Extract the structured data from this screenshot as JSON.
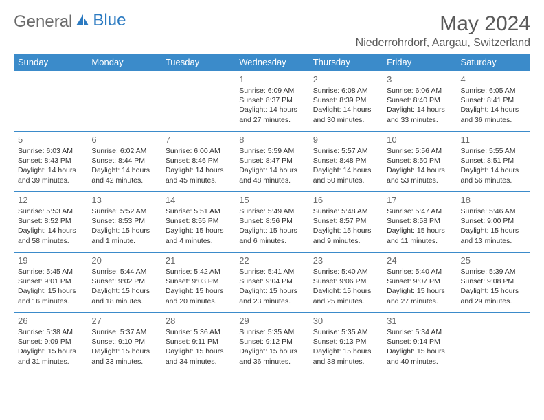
{
  "logo": {
    "text1": "General",
    "text2": "Blue"
  },
  "title": "May 2024",
  "location": "Niederrohrdorf, Aargau, Switzerland",
  "colors": {
    "header_bg": "#3b8bca",
    "header_fg": "#ffffff",
    "border": "#3b8bca",
    "text": "#333333",
    "muted": "#6a6a6a",
    "logo_blue": "#2b7ac1"
  },
  "days": [
    "Sunday",
    "Monday",
    "Tuesday",
    "Wednesday",
    "Thursday",
    "Friday",
    "Saturday"
  ],
  "weeks": [
    [
      null,
      null,
      null,
      {
        "n": "1",
        "sr": "6:09 AM",
        "ss": "8:37 PM",
        "d1": "14 hours",
        "d2": "and 27 minutes."
      },
      {
        "n": "2",
        "sr": "6:08 AM",
        "ss": "8:39 PM",
        "d1": "14 hours",
        "d2": "and 30 minutes."
      },
      {
        "n": "3",
        "sr": "6:06 AM",
        "ss": "8:40 PM",
        "d1": "14 hours",
        "d2": "and 33 minutes."
      },
      {
        "n": "4",
        "sr": "6:05 AM",
        "ss": "8:41 PM",
        "d1": "14 hours",
        "d2": "and 36 minutes."
      }
    ],
    [
      {
        "n": "5",
        "sr": "6:03 AM",
        "ss": "8:43 PM",
        "d1": "14 hours",
        "d2": "and 39 minutes."
      },
      {
        "n": "6",
        "sr": "6:02 AM",
        "ss": "8:44 PM",
        "d1": "14 hours",
        "d2": "and 42 minutes."
      },
      {
        "n": "7",
        "sr": "6:00 AM",
        "ss": "8:46 PM",
        "d1": "14 hours",
        "d2": "and 45 minutes."
      },
      {
        "n": "8",
        "sr": "5:59 AM",
        "ss": "8:47 PM",
        "d1": "14 hours",
        "d2": "and 48 minutes."
      },
      {
        "n": "9",
        "sr": "5:57 AM",
        "ss": "8:48 PM",
        "d1": "14 hours",
        "d2": "and 50 minutes."
      },
      {
        "n": "10",
        "sr": "5:56 AM",
        "ss": "8:50 PM",
        "d1": "14 hours",
        "d2": "and 53 minutes."
      },
      {
        "n": "11",
        "sr": "5:55 AM",
        "ss": "8:51 PM",
        "d1": "14 hours",
        "d2": "and 56 minutes."
      }
    ],
    [
      {
        "n": "12",
        "sr": "5:53 AM",
        "ss": "8:52 PM",
        "d1": "14 hours",
        "d2": "and 58 minutes."
      },
      {
        "n": "13",
        "sr": "5:52 AM",
        "ss": "8:53 PM",
        "d1": "15 hours",
        "d2": "and 1 minute."
      },
      {
        "n": "14",
        "sr": "5:51 AM",
        "ss": "8:55 PM",
        "d1": "15 hours",
        "d2": "and 4 minutes."
      },
      {
        "n": "15",
        "sr": "5:49 AM",
        "ss": "8:56 PM",
        "d1": "15 hours",
        "d2": "and 6 minutes."
      },
      {
        "n": "16",
        "sr": "5:48 AM",
        "ss": "8:57 PM",
        "d1": "15 hours",
        "d2": "and 9 minutes."
      },
      {
        "n": "17",
        "sr": "5:47 AM",
        "ss": "8:58 PM",
        "d1": "15 hours",
        "d2": "and 11 minutes."
      },
      {
        "n": "18",
        "sr": "5:46 AM",
        "ss": "9:00 PM",
        "d1": "15 hours",
        "d2": "and 13 minutes."
      }
    ],
    [
      {
        "n": "19",
        "sr": "5:45 AM",
        "ss": "9:01 PM",
        "d1": "15 hours",
        "d2": "and 16 minutes."
      },
      {
        "n": "20",
        "sr": "5:44 AM",
        "ss": "9:02 PM",
        "d1": "15 hours",
        "d2": "and 18 minutes."
      },
      {
        "n": "21",
        "sr": "5:42 AM",
        "ss": "9:03 PM",
        "d1": "15 hours",
        "d2": "and 20 minutes."
      },
      {
        "n": "22",
        "sr": "5:41 AM",
        "ss": "9:04 PM",
        "d1": "15 hours",
        "d2": "and 23 minutes."
      },
      {
        "n": "23",
        "sr": "5:40 AM",
        "ss": "9:06 PM",
        "d1": "15 hours",
        "d2": "and 25 minutes."
      },
      {
        "n": "24",
        "sr": "5:40 AM",
        "ss": "9:07 PM",
        "d1": "15 hours",
        "d2": "and 27 minutes."
      },
      {
        "n": "25",
        "sr": "5:39 AM",
        "ss": "9:08 PM",
        "d1": "15 hours",
        "d2": "and 29 minutes."
      }
    ],
    [
      {
        "n": "26",
        "sr": "5:38 AM",
        "ss": "9:09 PM",
        "d1": "15 hours",
        "d2": "and 31 minutes."
      },
      {
        "n": "27",
        "sr": "5:37 AM",
        "ss": "9:10 PM",
        "d1": "15 hours",
        "d2": "and 33 minutes."
      },
      {
        "n": "28",
        "sr": "5:36 AM",
        "ss": "9:11 PM",
        "d1": "15 hours",
        "d2": "and 34 minutes."
      },
      {
        "n": "29",
        "sr": "5:35 AM",
        "ss": "9:12 PM",
        "d1": "15 hours",
        "d2": "and 36 minutes."
      },
      {
        "n": "30",
        "sr": "5:35 AM",
        "ss": "9:13 PM",
        "d1": "15 hours",
        "d2": "and 38 minutes."
      },
      {
        "n": "31",
        "sr": "5:34 AM",
        "ss": "9:14 PM",
        "d1": "15 hours",
        "d2": "and 40 minutes."
      },
      null
    ]
  ],
  "labels": {
    "sunrise": "Sunrise:",
    "sunset": "Sunset:",
    "daylight": "Daylight:"
  }
}
